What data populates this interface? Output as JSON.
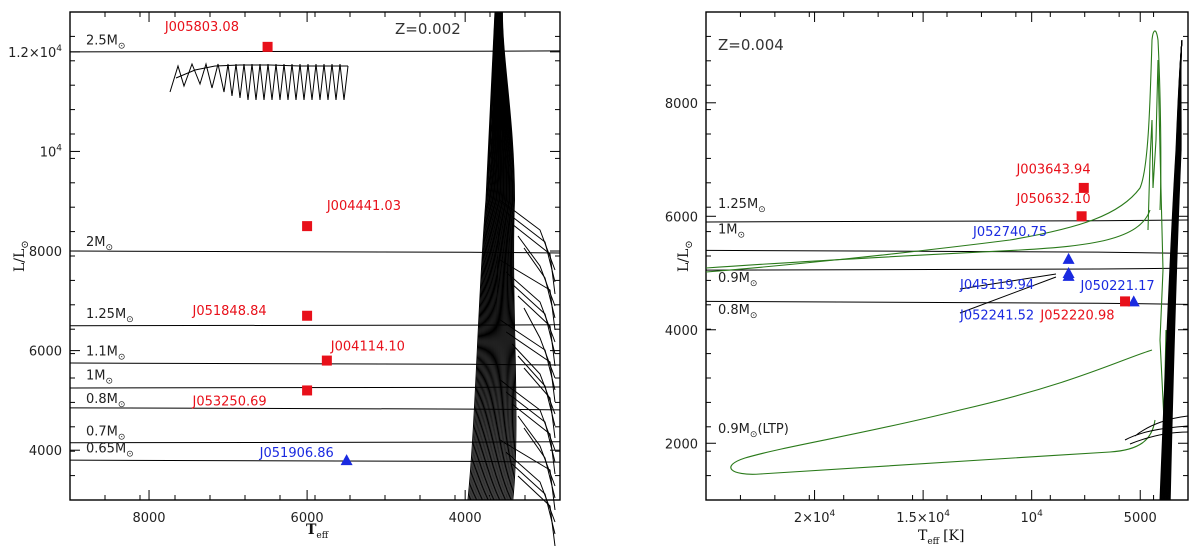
{
  "chart_data": [
    {
      "type": "scatter",
      "title": "",
      "annotation": "Z=0.002",
      "xlabel": "T",
      "xlabel_sub": "eff",
      "ylabel": "L/L",
      "ylabel_sub": "⊙",
      "xlim": [
        9000,
        2800
      ],
      "ylim": [
        3000,
        12800
      ],
      "xticks": [
        {
          "v": 8000,
          "label": "8000"
        },
        {
          "v": 6000,
          "label": "6000"
        },
        {
          "v": 4000,
          "label": "4000"
        }
      ],
      "yticks": [
        {
          "v": 4000,
          "label": "4000"
        },
        {
          "v": 6000,
          "label": "6000"
        },
        {
          "v": 8000,
          "label": "8000"
        },
        {
          "v": 10000,
          "label": "10",
          "sup": "4"
        },
        {
          "v": 12000,
          "label": "1.2×10",
          "sup": "4"
        }
      ],
      "tracks": [
        {
          "mass": "2.5M",
          "y": 12000,
          "label_y": 12150
        },
        {
          "mass": "2M",
          "y": 8000,
          "label_y": 8100
        },
        {
          "mass": "1.25M",
          "y": 6500,
          "label_y": 6650
        },
        {
          "mass": "1.1M",
          "y": 5750,
          "label_y": 5900
        },
        {
          "mass": "1M",
          "y": 5250,
          "label_y": 5420
        },
        {
          "mass": "0.8M",
          "y": 4850,
          "label_y": 4950
        },
        {
          "mass": "0.7M",
          "y": 4150,
          "label_y": 4300
        },
        {
          "mass": "0.65M",
          "y": 3800,
          "label_y": 3950
        }
      ],
      "mass_subscript": "⊙",
      "points": [
        {
          "name": "J005803.08",
          "x": 6500,
          "y": 12100,
          "marker": "square",
          "color": "#e8101a",
          "label_x": 7800,
          "label_y": 12420
        },
        {
          "name": "J004441.03",
          "x": 6000,
          "y": 8500,
          "marker": "square",
          "color": "#e8101a",
          "label_x": 5750,
          "label_y": 8820
        },
        {
          "name": "J051848.84",
          "x": 6000,
          "y": 6700,
          "marker": "square",
          "color": "#e8101a",
          "label_x": 7450,
          "label_y": 6720
        },
        {
          "name": "J004114.10",
          "x": 5750,
          "y": 5800,
          "marker": "square",
          "color": "#e8101a",
          "label_x": 5700,
          "label_y": 6000
        },
        {
          "name": "J053250.69",
          "x": 6000,
          "y": 5200,
          "marker": "square",
          "color": "#e8101a",
          "label_x": 7450,
          "label_y": 4900
        },
        {
          "name": "J051906.86",
          "x": 5500,
          "y": 3800,
          "marker": "triangle",
          "color": "#1a2ae0",
          "label_x": 6600,
          "label_y": 3860
        }
      ]
    },
    {
      "type": "scatter",
      "title": "",
      "annotation": "Z=0.004",
      "xlabel": "T",
      "xlabel_sub": "eff",
      "xlabel_unit": "[K]",
      "ylabel": "L/L",
      "ylabel_sub": "⊙",
      "xlim": [
        25000,
        2800
      ],
      "ylim": [
        1000,
        9600
      ],
      "xticks": [
        {
          "v": 20000,
          "label": "2×10",
          "sup": "4"
        },
        {
          "v": 15000,
          "label": "1.5×10",
          "sup": "4"
        },
        {
          "v": 10000,
          "label": "10",
          "sup": "4"
        },
        {
          "v": 5000,
          "label": "5000"
        }
      ],
      "yticks": [
        {
          "v": 2000,
          "label": "2000"
        },
        {
          "v": 4000,
          "label": "4000"
        },
        {
          "v": 6000,
          "label": "6000"
        },
        {
          "v": 8000,
          "label": "8000"
        }
      ],
      "tracks": [
        {
          "mass": "1.25M",
          "y": 5900,
          "label_y": 6150
        },
        {
          "mass": "1M",
          "y": 5400,
          "label_y": 5700
        },
        {
          "mass": "0.9M",
          "y": 5050,
          "label_y": 4840
        },
        {
          "mass": "0.8M",
          "y": 4500,
          "label_y": 4280
        }
      ],
      "ltp_label": "0.9M",
      "ltp_suffix": "(LTP)",
      "mass_subscript": "⊙",
      "points": [
        {
          "name": "J003643.94",
          "x": 7600,
          "y": 6500,
          "marker": "square",
          "color": "#e8101a",
          "label_x": 10700,
          "label_y": 6750
        },
        {
          "name": "J050632.10",
          "x": 7700,
          "y": 6000,
          "marker": "square",
          "color": "#e8101a",
          "label_x": 10700,
          "label_y": 6230
        },
        {
          "name": "J052740.75",
          "x": 8300,
          "y": 5250,
          "marker": "triangle",
          "color": "#1a2ae0",
          "label_x": 12700,
          "label_y": 5650
        },
        {
          "name": "J045119.94",
          "x": 8300,
          "y": 5000,
          "marker": "triangle",
          "color": "#1a2ae0",
          "label_x": 13300,
          "label_y": 4720
        },
        {
          "name": "J052241.52",
          "x": 8300,
          "y": 4950,
          "marker": "triangle",
          "color": "#1a2ae0",
          "label_x": 13300,
          "label_y": 4180
        },
        {
          "name": "J050221.17",
          "x": 5300,
          "y": 4500,
          "marker": "triangle",
          "color": "#1a2ae0",
          "label_x": 7750,
          "label_y": 4700
        },
        {
          "name": "J052220.98",
          "x": 5700,
          "y": 4500,
          "marker": "square",
          "color": "#e8101a",
          "label_x": 9600,
          "label_y": 4180
        }
      ]
    }
  ]
}
